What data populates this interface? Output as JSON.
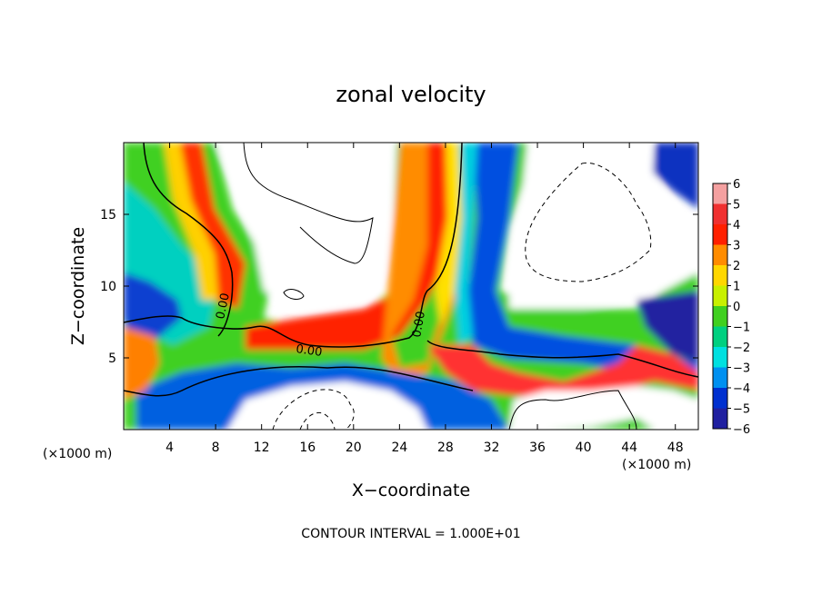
{
  "chart_data": {
    "type": "heatmap",
    "title": "zonal velocity",
    "xlabel": "X−coordinate",
    "ylabel": "Z−coordinate",
    "x_unit_label": "(×1000 m)",
    "x_unit_label_right": "(×1000 m)",
    "xlim": [
      0,
      50
    ],
    "ylim": [
      0,
      20
    ],
    "x_ticks": [
      4,
      8,
      12,
      16,
      20,
      24,
      28,
      32,
      36,
      40,
      44,
      48
    ],
    "x_tick_labels": [
      "4",
      "8",
      "12",
      "16",
      "20",
      "24",
      "28",
      "32",
      "36",
      "40",
      "44",
      "48"
    ],
    "y_ticks": [
      5,
      10,
      15
    ],
    "y_tick_labels": [
      "5",
      "10",
      "15"
    ],
    "colorbar": {
      "levels": [
        6,
        5,
        4,
        3,
        2,
        1,
        0,
        -1,
        -2,
        -3,
        -4,
        -5,
        -6
      ],
      "labels": [
        "6",
        "5",
        "4",
        "3",
        "2",
        "1",
        "0",
        "−1",
        "−2",
        "−3",
        "−4",
        "−5",
        "−6"
      ],
      "colors": [
        "#f4a0a0",
        "#f03030",
        "#ff2000",
        "#ff8c00",
        "#ffd700",
        "#c8f000",
        "#40d020",
        "#00d080",
        "#00e0e0",
        "#0090f0",
        "#0030d0",
        "#2020a0",
        "#7010a0"
      ]
    },
    "contour_interval_text": "CONTOUR INTERVAL = 1.000E+01",
    "contour_labels": [
      "0.00",
      "0.00",
      "0.00"
    ]
  }
}
